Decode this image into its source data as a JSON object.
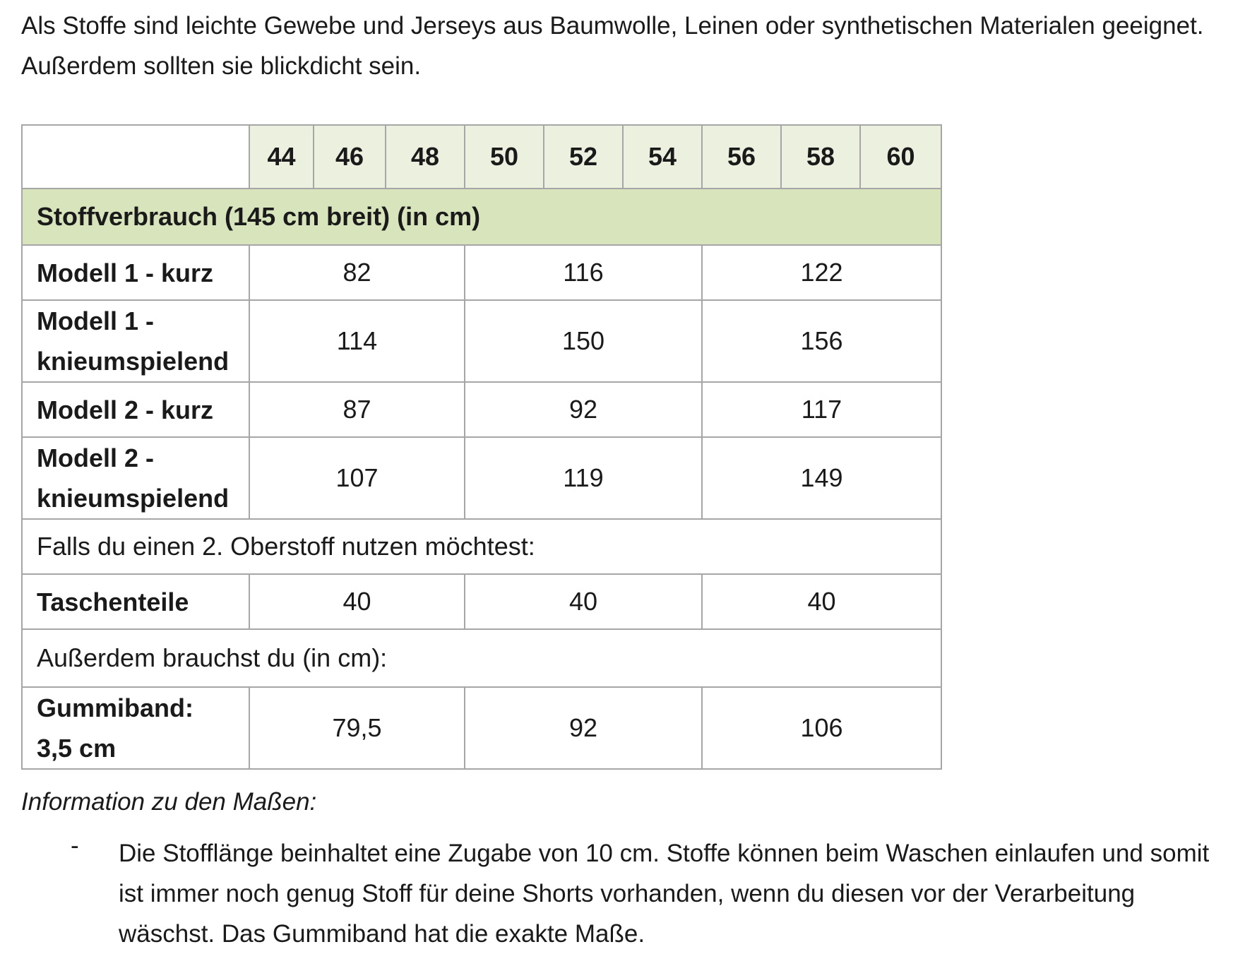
{
  "intro": "Als Stoffe sind leichte Gewebe und Jerseys aus Baumwolle, Leinen oder synthetischen Materialen geeignet. Außerdem sollten sie blickdicht sein.",
  "sizes": [
    "44",
    "46",
    "48",
    "50",
    "52",
    "54",
    "56",
    "58",
    "60"
  ],
  "section_title": "Stoffverbrauch (145 cm breit) (in cm)",
  "rows": [
    {
      "label": "Modell 1 - kurz",
      "values": [
        "82",
        "116",
        "122"
      ]
    },
    {
      "label_lines": [
        "Modell 1 -",
        "knieumspielend"
      ],
      "values": [
        "114",
        "150",
        "156"
      ]
    },
    {
      "label": "Modell 2 - kurz",
      "values": [
        "87",
        "92",
        "117"
      ]
    },
    {
      "label_lines": [
        "Modell 2 -",
        "knieumspielend"
      ],
      "values": [
        "107",
        "119",
        "149"
      ]
    }
  ],
  "second_fabric_note": "Falls du einen 2. Oberstoff nutzen möchtest:",
  "pocket_row": {
    "label": "Taschenteile",
    "values": [
      "40",
      "40",
      "40"
    ]
  },
  "additional_note": "Außerdem brauchst du (in cm):",
  "elastic_row": {
    "label_lines": [
      "Gummiband:",
      "3,5 cm"
    ],
    "values": [
      "79,5",
      "92",
      "106"
    ]
  },
  "info_title": "Information zu den Maßen:",
  "info_bullet_marker": "-",
  "info_bullet_text": "Die Stofflänge beinhaltet eine Zugabe von 10 cm. Stoffe können beim Waschen einlaufen und somit ist immer noch genug Stoff für deine Shorts vorhanden, wenn du diesen vor der Verarbeitung wäschst. Das Gummiband hat die exakte Maße."
}
